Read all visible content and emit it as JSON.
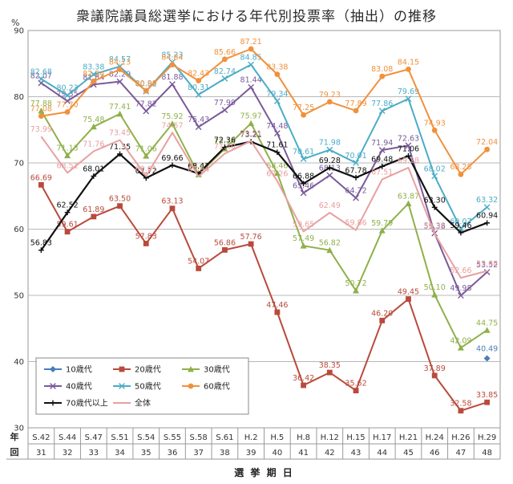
{
  "chart_data": {
    "type": "line",
    "title": "衆議院議員総選挙における年代別投票率（抽出）の推移",
    "yunit": "%",
    "xlabel": "選 挙 期 日",
    "row_headers": [
      "年",
      "回"
    ],
    "ylim": [
      30,
      90
    ],
    "yticks": [
      30,
      40,
      50,
      60,
      70,
      80,
      90
    ],
    "grid": true,
    "legend": "bottom-left",
    "categories": [
      "S.42",
      "S.44",
      "S.47",
      "S.51",
      "S.54",
      "S.55",
      "S.58",
      "S.61",
      "H.2",
      "H.5",
      "H.8",
      "H.12",
      "H.15",
      "H.17",
      "H.21",
      "H.24",
      "H.26",
      "H.29"
    ],
    "rounds": [
      "31",
      "32",
      "33",
      "34",
      "35",
      "36",
      "37",
      "38",
      "39",
      "40",
      "41",
      "42",
      "43",
      "44",
      "45",
      "46",
      "47",
      "48"
    ],
    "series": [
      {
        "name": "10歳代",
        "color": "#4a7ebb",
        "marker": "diamond",
        "values": [
          null,
          null,
          null,
          null,
          null,
          null,
          null,
          null,
          null,
          null,
          null,
          null,
          null,
          null,
          null,
          null,
          null,
          40.49
        ]
      },
      {
        "name": "20歳代",
        "color": "#b94a3c",
        "marker": "square",
        "values": [
          66.69,
          59.61,
          61.89,
          63.5,
          57.83,
          63.13,
          54.07,
          56.86,
          57.76,
          47.46,
          36.42,
          38.35,
          35.62,
          46.2,
          49.45,
          37.89,
          32.58,
          33.85
        ]
      },
      {
        "name": "30歳代",
        "color": "#8fb04a",
        "marker": "triangle",
        "values": [
          77.88,
          71.13,
          75.48,
          77.41,
          71.06,
          75.92,
          68.25,
          72.15,
          75.97,
          68.46,
          57.49,
          56.82,
          50.72,
          59.79,
          63.87,
          50.1,
          42.09,
          44.75
        ]
      },
      {
        "name": "40歳代",
        "color": "#7a5a9a",
        "marker": "x",
        "values": [
          82.07,
          79.35,
          81.84,
          82.29,
          77.82,
          81.88,
          75.43,
          77.99,
          81.44,
          74.48,
          65.46,
          68.13,
          64.72,
          71.94,
          72.63,
          59.38,
          49.98,
          53.52
        ]
      },
      {
        "name": "50歳代",
        "color": "#4bacc6",
        "marker": "x",
        "values": [
          82.68,
          80.23,
          83.38,
          84.57,
          80.82,
          85.23,
          80.31,
          82.74,
          84.85,
          79.34,
          70.61,
          71.98,
          70.01,
          77.86,
          79.69,
          68.02,
          60.07,
          63.32
        ]
      },
      {
        "name": "60歳代",
        "color": "#f0913c",
        "marker": "circle",
        "values": [
          77.08,
          77.7,
          82.34,
          84.13,
          80.9,
          84.84,
          82.43,
          85.66,
          87.21,
          83.38,
          77.25,
          79.23,
          77.89,
          83.08,
          84.15,
          74.93,
          68.28,
          72.04
        ]
      },
      {
        "name": "70歳代以上",
        "color": "#111111",
        "marker": "plus",
        "values": [
          56.83,
          62.52,
          68.01,
          71.35,
          67.72,
          69.66,
          68.41,
          72.36,
          73.21,
          71.61,
          66.88,
          69.28,
          67.78,
          69.48,
          71.06,
          63.3,
          59.46,
          60.94
        ]
      },
      {
        "name": "全体",
        "color": "#e8a0a0",
        "marker": "none",
        "values": [
          73.99,
          68.51,
          71.76,
          73.45,
          68.01,
          74.57,
          67.94,
          71.4,
          73.31,
          67.26,
          59.65,
          62.49,
          59.86,
          67.51,
          69.28,
          59.32,
          52.66,
          53.68
        ]
      }
    ]
  }
}
